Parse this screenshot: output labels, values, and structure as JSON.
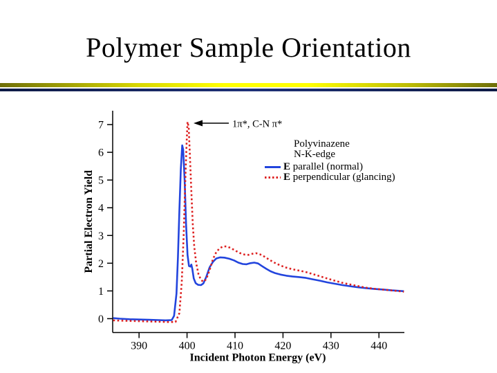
{
  "slide": {
    "title": "Polymer Sample Orientation",
    "colors": {
      "divider_gold": "#ffff00",
      "divider_gold_dark": "#6e6e08",
      "divider_navy": "#1e3178",
      "series_parallel_blue": "#2244dd",
      "series_perpendicular_red": "#dd2020"
    }
  },
  "chart_data": {
    "type": "line",
    "title": "",
    "xlabel": "Incident Photon Energy (eV)",
    "ylabel": "Partial Electron Yield",
    "xlim": [
      384.5,
      445.3
    ],
    "ylim": [
      -0.5,
      7.5
    ],
    "x_ticks": [
      390,
      400,
      410,
      420,
      430,
      440
    ],
    "y_ticks": [
      0,
      1,
      2,
      3,
      4,
      5,
      6,
      7
    ],
    "grid": false,
    "annotation": {
      "text": "1π*, C-N π*"
    },
    "legend": {
      "position": "upper right",
      "title_lines": [
        "Polyvinazene",
        "N-K-edge"
      ],
      "entries": [
        {
          "symbol_bold": "E",
          "label": " parallel (normal)",
          "style": "solid",
          "color": "#2244dd"
        },
        {
          "symbol_bold": "E",
          "label": " perpendicular (glancing)",
          "style": "dotted",
          "color": "#dd2020"
        }
      ]
    },
    "series": [
      {
        "name": "E parallel (normal)",
        "style": "solid",
        "color": "#2244dd",
        "points": [
          [
            384.6,
            0.02
          ],
          [
            386,
            0
          ],
          [
            388,
            -0.02
          ],
          [
            390,
            -0.03
          ],
          [
            392,
            -0.04
          ],
          [
            394,
            -0.05
          ],
          [
            395.5,
            -0.06
          ],
          [
            396.8,
            -0.05
          ],
          [
            397.3,
            0.1
          ],
          [
            397.8,
            0.9
          ],
          [
            398.1,
            2.2
          ],
          [
            398.4,
            3.9
          ],
          [
            398.7,
            5.4
          ],
          [
            399,
            6.25
          ],
          [
            399.2,
            6.1
          ],
          [
            399.5,
            5
          ],
          [
            399.8,
            3.4
          ],
          [
            400.1,
            2.3
          ],
          [
            400.4,
            1.9
          ],
          [
            400.7,
            1.88
          ],
          [
            400.9,
            1.95
          ],
          [
            401.1,
            1.8
          ],
          [
            401.4,
            1.45
          ],
          [
            401.8,
            1.28
          ],
          [
            402.3,
            1.22
          ],
          [
            402.9,
            1.21
          ],
          [
            403.4,
            1.27
          ],
          [
            404,
            1.5
          ],
          [
            404.7,
            1.85
          ],
          [
            405.4,
            2.05
          ],
          [
            406.1,
            2.17
          ],
          [
            406.9,
            2.21
          ],
          [
            407.8,
            2.2
          ],
          [
            408.8,
            2.16
          ],
          [
            409.8,
            2.1
          ],
          [
            410.7,
            2.02
          ],
          [
            411.6,
            1.97
          ],
          [
            412.4,
            1.96
          ],
          [
            413.2,
            2
          ],
          [
            414,
            2.02
          ],
          [
            414.8,
            1.99
          ],
          [
            415.6,
            1.9
          ],
          [
            416.5,
            1.8
          ],
          [
            417.4,
            1.71
          ],
          [
            418.4,
            1.64
          ],
          [
            419.5,
            1.59
          ],
          [
            420.7,
            1.55
          ],
          [
            422,
            1.52
          ],
          [
            423.4,
            1.5
          ],
          [
            424.8,
            1.47
          ],
          [
            426.2,
            1.42
          ],
          [
            427.7,
            1.37
          ],
          [
            429.2,
            1.31
          ],
          [
            430.8,
            1.26
          ],
          [
            432.4,
            1.21
          ],
          [
            434,
            1.17
          ],
          [
            435.7,
            1.13
          ],
          [
            437.4,
            1.1
          ],
          [
            439.1,
            1.07
          ],
          [
            440.9,
            1.05
          ],
          [
            442.7,
            1.02
          ],
          [
            444.5,
            1
          ],
          [
            445.2,
            0.99
          ]
        ]
      },
      {
        "name": "E perpendicular (glancing)",
        "style": "dotted",
        "color": "#dd2020",
        "points": [
          [
            384.6,
            -0.06
          ],
          [
            386,
            -0.07
          ],
          [
            388,
            -0.08
          ],
          [
            390,
            -0.09
          ],
          [
            392,
            -0.1
          ],
          [
            394,
            -0.11
          ],
          [
            396,
            -0.12
          ],
          [
            397.6,
            -0.12
          ],
          [
            398.4,
            0.2
          ],
          [
            398.9,
            1.3
          ],
          [
            399.3,
            3
          ],
          [
            399.6,
            4.8
          ],
          [
            399.9,
            6.3
          ],
          [
            400.1,
            7.1
          ],
          [
            400.35,
            6.9
          ],
          [
            400.6,
            5.9
          ],
          [
            400.9,
            4.6
          ],
          [
            401.2,
            3.4
          ],
          [
            401.5,
            2.6
          ],
          [
            401.9,
            2
          ],
          [
            402.4,
            1.6
          ],
          [
            402.9,
            1.4
          ],
          [
            403.4,
            1.33
          ],
          [
            404,
            1.42
          ],
          [
            404.7,
            1.75
          ],
          [
            405.4,
            2.15
          ],
          [
            406.1,
            2.4
          ],
          [
            406.8,
            2.54
          ],
          [
            407.6,
            2.61
          ],
          [
            408.4,
            2.6
          ],
          [
            409.3,
            2.53
          ],
          [
            410.2,
            2.44
          ],
          [
            411.1,
            2.36
          ],
          [
            412,
            2.31
          ],
          [
            412.8,
            2.3
          ],
          [
            413.6,
            2.34
          ],
          [
            414.4,
            2.36
          ],
          [
            415.2,
            2.32
          ],
          [
            416.1,
            2.24
          ],
          [
            417.1,
            2.13
          ],
          [
            418.2,
            2.02
          ],
          [
            419.3,
            1.93
          ],
          [
            420.5,
            1.85
          ],
          [
            421.8,
            1.79
          ],
          [
            423.2,
            1.74
          ],
          [
            424.6,
            1.69
          ],
          [
            426,
            1.62
          ],
          [
            427.5,
            1.54
          ],
          [
            429,
            1.46
          ],
          [
            430.6,
            1.38
          ],
          [
            432.2,
            1.3
          ],
          [
            433.8,
            1.24
          ],
          [
            435.5,
            1.18
          ],
          [
            437.2,
            1.12
          ],
          [
            438.9,
            1.08
          ],
          [
            440.7,
            1.05
          ],
          [
            442.5,
            1.02
          ],
          [
            444.3,
            0.99
          ],
          [
            445.2,
            0.97
          ]
        ]
      }
    ]
  }
}
